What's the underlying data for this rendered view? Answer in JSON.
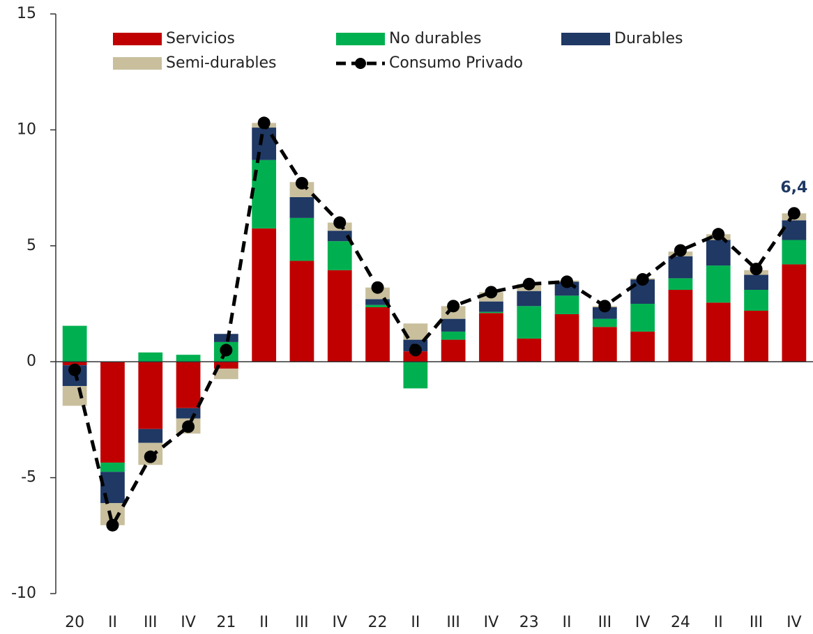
{
  "chart_data": {
    "type": "bar",
    "stacked": true,
    "categories": [
      "20",
      "II",
      "III",
      "IV",
      "21",
      "II",
      "III",
      "IV",
      "22",
      "II",
      "III",
      "IV",
      "23",
      "II",
      "III",
      "IV",
      "24",
      "II",
      "III",
      "IV"
    ],
    "series": [
      {
        "name": "Servicios",
        "color": "#c00000",
        "values": [
          -0.15,
          -4.35,
          -2.9,
          -2.0,
          -0.3,
          5.75,
          4.35,
          3.95,
          2.35,
          0.45,
          0.95,
          2.1,
          1.0,
          2.05,
          1.5,
          1.3,
          3.1,
          2.55,
          2.2,
          4.2
        ]
      },
      {
        "name": "No durables",
        "color": "#00b050",
        "values": [
          1.55,
          -0.4,
          0.4,
          0.3,
          0.85,
          2.95,
          1.85,
          1.25,
          0.1,
          -1.15,
          0.35,
          0.05,
          1.4,
          0.8,
          0.35,
          1.2,
          0.5,
          1.6,
          0.9,
          1.05
        ]
      },
      {
        "name": "Durables",
        "color": "#1f3864",
        "values": [
          -0.9,
          -1.35,
          -0.6,
          -0.45,
          0.35,
          1.4,
          0.9,
          0.45,
          0.25,
          0.5,
          0.55,
          0.45,
          0.65,
          0.6,
          0.5,
          1.05,
          0.95,
          1.1,
          0.65,
          0.85
        ]
      },
      {
        "name": "Semi-durables",
        "color": "#c9bf9d",
        "values": [
          -0.85,
          -0.95,
          -0.95,
          -0.65,
          -0.45,
          0.2,
          0.65,
          0.35,
          0.5,
          0.7,
          0.55,
          0.4,
          0.3,
          0.05,
          0.05,
          0.05,
          0.2,
          0.25,
          0.2,
          0.3
        ]
      },
      {
        "name": "Consumo Privado",
        "color": "#000000",
        "type": "line",
        "values": [
          -0.35,
          -7.05,
          -4.1,
          -2.8,
          0.5,
          10.3,
          7.7,
          6.0,
          3.2,
          0.5,
          2.4,
          3.0,
          3.35,
          3.45,
          2.4,
          3.55,
          4.8,
          5.5,
          4.0,
          6.4
        ],
        "value_labels": [
          null,
          null,
          null,
          null,
          null,
          null,
          null,
          null,
          null,
          null,
          null,
          null,
          null,
          null,
          null,
          null,
          null,
          null,
          null,
          "6,4"
        ]
      }
    ],
    "ylim": [
      -10,
      15
    ],
    "yticks": [
      -10,
      -5,
      0,
      5,
      10,
      15
    ],
    "grid": false
  }
}
